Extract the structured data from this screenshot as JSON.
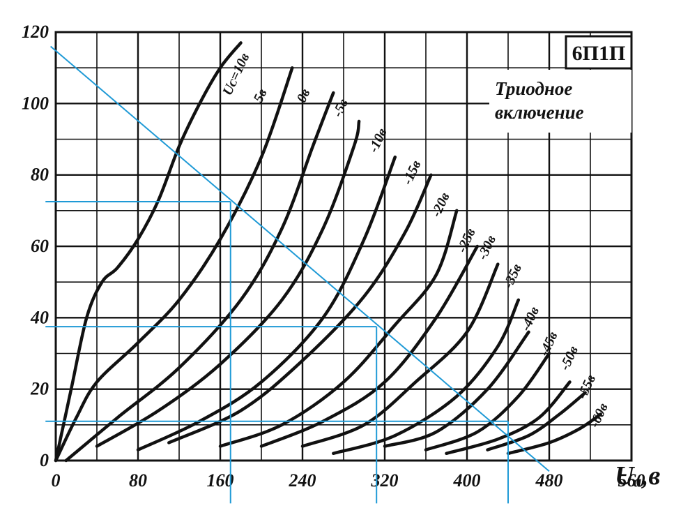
{
  "chart_data": {
    "type": "line",
    "title": "6П1П",
    "subtitle_lines": [
      "Триодное",
      "включение"
    ],
    "xlabel": "Uₐ,в",
    "ylabel": "",
    "xlim": [
      0,
      560
    ],
    "ylim": [
      0,
      120
    ],
    "x_ticks": [
      "0",
      "80",
      "160",
      "240",
      "320",
      "400",
      "480",
      "560"
    ],
    "y_ticks": [
      "0",
      "20",
      "40",
      "60",
      "80",
      "100",
      "120"
    ],
    "grid": true,
    "legend": "none",
    "series": [
      {
        "name": "Uᴄ=10в",
        "points": [
          [
            0,
            0
          ],
          [
            15,
            20
          ],
          [
            30,
            40
          ],
          [
            45,
            50
          ],
          [
            60,
            54
          ],
          [
            80,
            62
          ],
          [
            100,
            73
          ],
          [
            120,
            88
          ],
          [
            140,
            100
          ],
          [
            160,
            110
          ],
          [
            180,
            117
          ]
        ],
        "label_at": [
          170,
          102
        ]
      },
      {
        "name": "5в",
        "points": [
          [
            0,
            0
          ],
          [
            20,
            12
          ],
          [
            40,
            22
          ],
          [
            80,
            33
          ],
          [
            120,
            45
          ],
          [
            160,
            62
          ],
          [
            200,
            85
          ],
          [
            230,
            110
          ]
        ],
        "label_at": [
          200,
          100
        ]
      },
      {
        "name": "0в",
        "points": [
          [
            10,
            0
          ],
          [
            60,
            12
          ],
          [
            120,
            26
          ],
          [
            180,
            45
          ],
          [
            220,
            65
          ],
          [
            250,
            88
          ],
          [
            270,
            103
          ]
        ],
        "label_at": [
          242,
          100
        ]
      },
      {
        "name": "-5в",
        "points": [
          [
            40,
            4
          ],
          [
            100,
            14
          ],
          [
            160,
            27
          ],
          [
            220,
            45
          ],
          [
            260,
            65
          ],
          [
            290,
            88
          ],
          [
            295,
            95
          ]
        ],
        "label_at": [
          277,
          96
        ]
      },
      {
        "name": "-10в",
        "points": [
          [
            80,
            3
          ],
          [
            140,
            11
          ],
          [
            200,
            22
          ],
          [
            260,
            40
          ],
          [
            300,
            62
          ],
          [
            330,
            85
          ]
        ],
        "label_at": [
          312,
          86
        ]
      },
      {
        "name": "-15в",
        "points": [
          [
            110,
            5
          ],
          [
            180,
            14
          ],
          [
            240,
            28
          ],
          [
            300,
            46
          ],
          [
            340,
            64
          ],
          [
            365,
            80
          ]
        ],
        "label_at": [
          345,
          77
        ]
      },
      {
        "name": "-20в",
        "points": [
          [
            160,
            4
          ],
          [
            220,
            10
          ],
          [
            280,
            22
          ],
          [
            330,
            38
          ],
          [
            370,
            52
          ],
          [
            390,
            70
          ]
        ],
        "label_at": [
          373,
          68
        ]
      },
      {
        "name": "-25в",
        "points": [
          [
            200,
            4
          ],
          [
            260,
            11
          ],
          [
            320,
            22
          ],
          [
            370,
            40
          ],
          [
            410,
            60
          ]
        ],
        "label_at": [
          398,
          58
        ]
      },
      {
        "name": "-30в",
        "points": [
          [
            240,
            4
          ],
          [
            300,
            10
          ],
          [
            350,
            22
          ],
          [
            400,
            36
          ],
          [
            430,
            55
          ]
        ],
        "label_at": [
          418,
          56
        ]
      },
      {
        "name": "-35в",
        "points": [
          [
            270,
            2
          ],
          [
            330,
            7
          ],
          [
            390,
            18
          ],
          [
            430,
            32
          ],
          [
            450,
            45
          ]
        ],
        "label_at": [
          443,
          48
        ]
      },
      {
        "name": "-40в",
        "points": [
          [
            320,
            4
          ],
          [
            370,
            8
          ],
          [
            420,
            20
          ],
          [
            460,
            36
          ]
        ],
        "label_at": [
          460,
          36
        ]
      },
      {
        "name": "-45в",
        "points": [
          [
            360,
            3
          ],
          [
            410,
            8
          ],
          [
            450,
            18
          ],
          [
            480,
            30
          ]
        ],
        "label_at": [
          478,
          29
        ]
      },
      {
        "name": "-50в",
        "points": [
          [
            380,
            2
          ],
          [
            430,
            6
          ],
          [
            470,
            12
          ],
          [
            500,
            22
          ]
        ],
        "label_at": [
          498,
          25
        ]
      },
      {
        "name": "-55в",
        "points": [
          [
            420,
            3
          ],
          [
            460,
            7
          ],
          [
            490,
            13
          ],
          [
            515,
            19
          ]
        ],
        "label_at": [
          515,
          17
        ]
      },
      {
        "name": "-60в",
        "points": [
          [
            440,
            2
          ],
          [
            480,
            5
          ],
          [
            510,
            9
          ],
          [
            530,
            13
          ]
        ],
        "label_at": [
          527,
          9
        ]
      }
    ],
    "overlay_color": "#1f9ad6",
    "overlay_lines": [
      {
        "from": [
          -5,
          116
        ],
        "to": [
          480,
          -3
        ]
      },
      {
        "from": [
          -10,
          72.5
        ],
        "to": [
          170,
          72.5
        ]
      },
      {
        "from": [
          -10,
          37.5
        ],
        "to": [
          312,
          37.5
        ]
      },
      {
        "from": [
          -10,
          11
        ],
        "to": [
          440,
          11
        ]
      },
      {
        "from": [
          170,
          72.5
        ],
        "to": [
          170,
          -12
        ]
      },
      {
        "from": [
          312,
          37.5
        ],
        "to": [
          312,
          -12
        ]
      },
      {
        "from": [
          440,
          11
        ],
        "to": [
          440,
          -12
        ]
      }
    ]
  }
}
